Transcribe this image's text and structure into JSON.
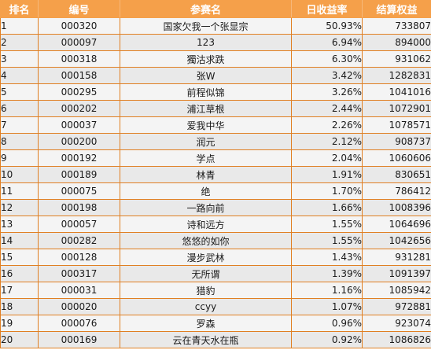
{
  "colors": {
    "header_bg": "#f5a04a",
    "header_text": "#ffffff",
    "grid_line": "#e07f22",
    "row_bg": "#f4f4f4",
    "row_alt_bg": "#e9e9e9"
  },
  "table": {
    "columns": [
      "排名",
      "编号",
      "参赛名",
      "日收益率",
      "结算权益"
    ],
    "rows": [
      [
        "1",
        "000320",
        "国家欠我一个张显宗",
        "50.93%",
        "733807"
      ],
      [
        "2",
        "000097",
        "123",
        "6.94%",
        "894000"
      ],
      [
        "3",
        "000318",
        "獨沽求跌",
        "6.30%",
        "931062"
      ],
      [
        "4",
        "000158",
        "张W",
        "3.42%",
        "1282831"
      ],
      [
        "5",
        "000295",
        "前程似锦",
        "3.26%",
        "1041016"
      ],
      [
        "6",
        "000202",
        "浦江草根",
        "2.44%",
        "1072901"
      ],
      [
        "7",
        "000037",
        "爱我中华",
        "2.26%",
        "1078571"
      ],
      [
        "8",
        "000200",
        "润元",
        "2.12%",
        "908737"
      ],
      [
        "9",
        "000192",
        "学点",
        "2.04%",
        "1060606"
      ],
      [
        "10",
        "000189",
        "林青",
        "1.91%",
        "830651"
      ],
      [
        "11",
        "000075",
        "绝",
        "1.70%",
        "786412"
      ],
      [
        "12",
        "000198",
        "一路向前",
        "1.66%",
        "1008396"
      ],
      [
        "13",
        "000057",
        "诗和远方",
        "1.55%",
        "1064696"
      ],
      [
        "14",
        "000282",
        "悠悠的如你",
        "1.55%",
        "1042656"
      ],
      [
        "15",
        "000128",
        "漫步武林",
        "1.43%",
        "931281"
      ],
      [
        "16",
        "000317",
        "无所谓",
        "1.39%",
        "1091397"
      ],
      [
        "17",
        "000031",
        "猎豹",
        "1.16%",
        "1085942"
      ],
      [
        "18",
        "000020",
        "ccyy",
        "1.07%",
        "972881"
      ],
      [
        "19",
        "000076",
        "罗森",
        "0.96%",
        "923074"
      ],
      [
        "20",
        "000169",
        "云在青天水在瓶",
        "0.92%",
        "1086826"
      ]
    ]
  }
}
